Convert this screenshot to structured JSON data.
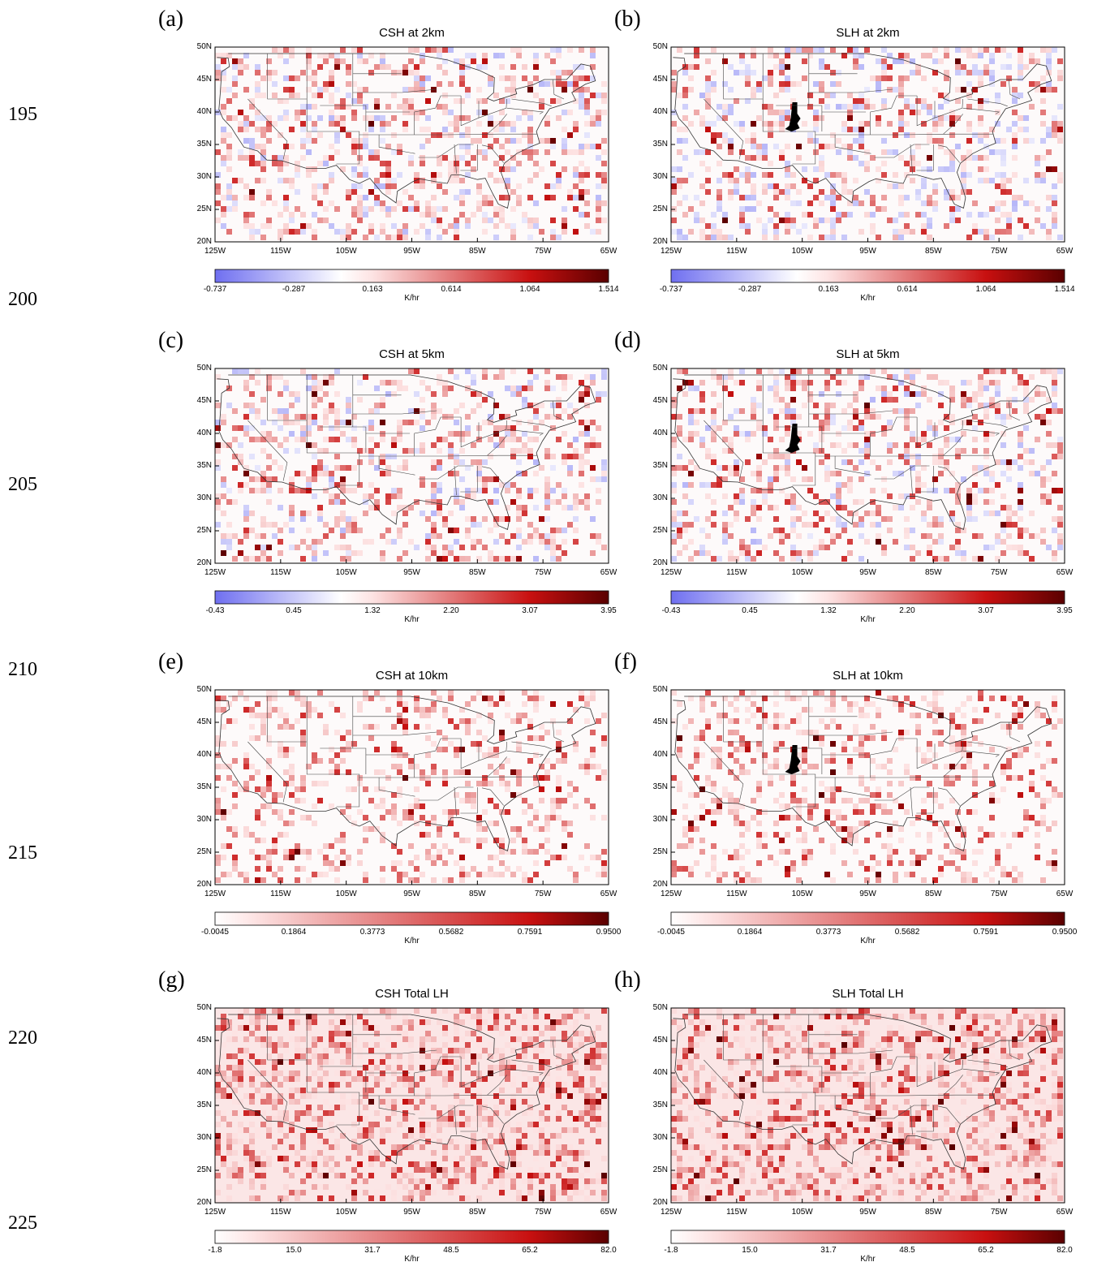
{
  "line_numbers": [
    "195",
    "200",
    "205",
    "210",
    "215",
    "220",
    "225"
  ],
  "lat_ticks": [
    "50N",
    "45N",
    "40N",
    "35N",
    "30N",
    "25N",
    "20N"
  ],
  "lon_ticks": [
    "125W",
    "115W",
    "105W",
    "95W",
    "85W",
    "75W",
    "65W"
  ],
  "units": "K/hr",
  "colors": {
    "low": "#6f6ff0",
    "neutral": "#ffffff",
    "mid": "#f2a0a0",
    "high": "#c81010",
    "max": "#5a0000"
  },
  "chart_data": [
    {
      "type": "heatmap",
      "panel": "(a)",
      "title": "CSH at 2km",
      "colorbar_ticks": [
        "-0.737",
        "-0.287",
        "0.163",
        "0.614",
        "1.064",
        "1.514"
      ],
      "colorbar_range": [
        -0.737,
        1.514
      ],
      "colorbar_unit": "K/hr",
      "diverging": true
    },
    {
      "type": "heatmap",
      "panel": "(b)",
      "title": "SLH at 2km",
      "colorbar_ticks": [
        "-0.737",
        "-0.287",
        "0.163",
        "0.614",
        "1.064",
        "1.514"
      ],
      "colorbar_range": [
        -0.737,
        1.514
      ],
      "colorbar_unit": "K/hr",
      "diverging": true
    },
    {
      "type": "heatmap",
      "panel": "(c)",
      "title": "CSH at 5km",
      "colorbar_ticks": [
        "-0.43",
        "0.45",
        "1.32",
        "2.20",
        "3.07",
        "3.95"
      ],
      "colorbar_range": [
        -0.43,
        3.95
      ],
      "colorbar_unit": "K/hr",
      "diverging": true
    },
    {
      "type": "heatmap",
      "panel": "(d)",
      "title": "SLH at 5km",
      "colorbar_ticks": [
        "-0.43",
        "0.45",
        "1.32",
        "2.20",
        "3.07",
        "3.95"
      ],
      "colorbar_range": [
        -0.43,
        3.95
      ],
      "colorbar_unit": "K/hr",
      "diverging": true
    },
    {
      "type": "heatmap",
      "panel": "(e)",
      "title": "CSH at 10km",
      "colorbar_ticks": [
        "-0.0045",
        "0.1864",
        "0.3773",
        "0.5682",
        "0.7591",
        "0.9500"
      ],
      "colorbar_range": [
        -0.0045,
        0.95
      ],
      "colorbar_unit": "K/hr",
      "diverging": false
    },
    {
      "type": "heatmap",
      "panel": "(f)",
      "title": "SLH at 10km",
      "colorbar_ticks": [
        "-0.0045",
        "0.1864",
        "0.3773",
        "0.5682",
        "0.7591",
        "0.9500"
      ],
      "colorbar_range": [
        -0.0045,
        0.95
      ],
      "colorbar_unit": "K/hr",
      "diverging": false
    },
    {
      "type": "heatmap",
      "panel": "(g)",
      "title": "CSH Total LH",
      "colorbar_ticks": [
        "-1.8",
        "15.0",
        "31.7",
        "48.5",
        "65.2",
        "82.0"
      ],
      "colorbar_range": [
        -1.8,
        82.0
      ],
      "colorbar_unit": "K/hr",
      "diverging": false
    },
    {
      "type": "heatmap",
      "panel": "(h)",
      "title": "SLH Total LH",
      "colorbar_ticks": [
        "-1.8",
        "15.0",
        "31.7",
        "48.5",
        "65.2",
        "82.0"
      ],
      "colorbar_range": [
        -1.8,
        82.0
      ],
      "colorbar_unit": "K/hr",
      "diverging": false
    }
  ]
}
